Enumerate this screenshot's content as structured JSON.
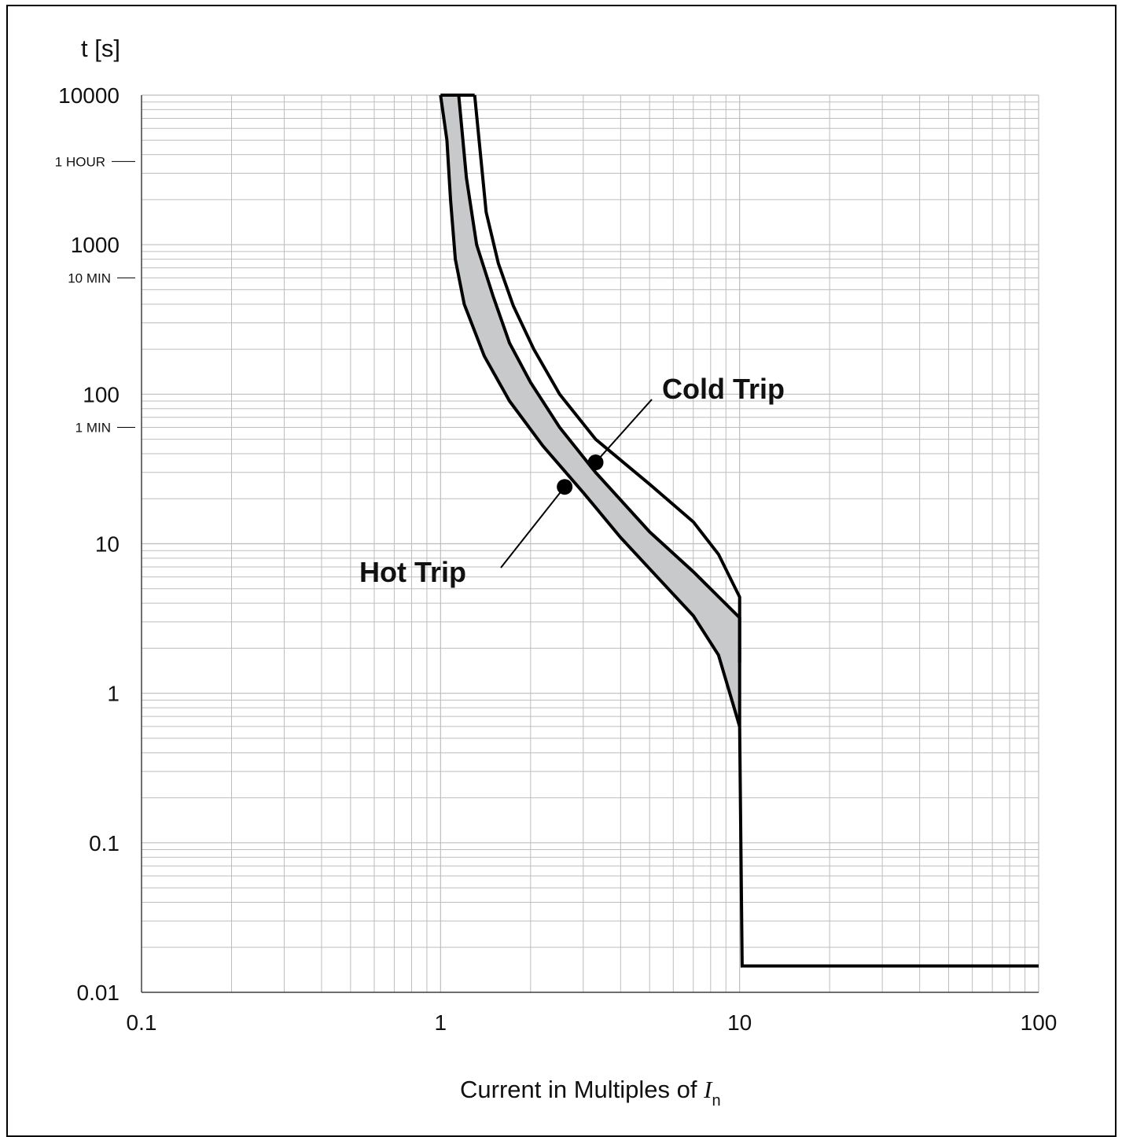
{
  "chart_data": {
    "type": "line",
    "title": "",
    "ylabel": "t [s]",
    "xlabel": {
      "main": "Current in Multiples of",
      "symbol": "I",
      "subscript": "n"
    },
    "x_scale": "log",
    "y_scale": "log",
    "xlim": [
      0.1,
      100
    ],
    "ylim": [
      0.01,
      10000
    ],
    "grid": true,
    "legend": "none",
    "x_ticks": [
      {
        "value": 0.1,
        "label": "0.1"
      },
      {
        "value": 1,
        "label": "1"
      },
      {
        "value": 10,
        "label": "10"
      },
      {
        "value": 100,
        "label": "100"
      }
    ],
    "y_ticks": [
      {
        "value": 10000,
        "label": "10000"
      },
      {
        "value": 1000,
        "label": "1000"
      },
      {
        "value": 100,
        "label": "100"
      },
      {
        "value": 10,
        "label": "10"
      },
      {
        "value": 1,
        "label": "1"
      },
      {
        "value": 0.1,
        "label": "0.1"
      },
      {
        "value": 0.01,
        "label": "0.01"
      }
    ],
    "time_markers": [
      {
        "value": 3600,
        "label": "1 HOUR"
      },
      {
        "value": 600,
        "label": "10 MIN"
      },
      {
        "value": 60,
        "label": "1 MIN"
      }
    ],
    "colors": {
      "band_fill": "#c8c9cb",
      "line": "#000000",
      "grid": "#bdbdbd"
    },
    "series": [
      {
        "name": "Cold Trip",
        "points": [
          [
            1.3,
            10000
          ],
          [
            1.42,
            1650
          ],
          [
            1.56,
            750
          ],
          [
            1.75,
            390
          ],
          [
            2.05,
            200
          ],
          [
            2.5,
            100
          ],
          [
            3.3,
            50
          ],
          [
            5.0,
            25
          ],
          [
            7.0,
            14
          ],
          [
            8.5,
            8.5
          ],
          [
            10,
            4.4
          ],
          [
            10,
            0.6
          ],
          [
            10.2,
            0.015
          ],
          [
            100,
            0.015
          ]
        ]
      },
      {
        "name": "Hot Trip",
        "points": [
          [
            1.15,
            10000
          ],
          [
            1.22,
            2800
          ],
          [
            1.32,
            1000
          ],
          [
            1.5,
            450
          ],
          [
            1.7,
            220
          ],
          [
            2.0,
            120
          ],
          [
            2.5,
            60
          ],
          [
            3.3,
            30
          ],
          [
            5.0,
            12
          ],
          [
            7.0,
            6.5
          ],
          [
            10,
            3.2
          ],
          [
            10,
            1.6
          ]
        ]
      }
    ],
    "annotations": [
      {
        "label": "Cold Trip",
        "x": 3.3,
        "y": 35
      },
      {
        "label": "Hot Trip",
        "x": 2.6,
        "y": 24
      }
    ]
  }
}
